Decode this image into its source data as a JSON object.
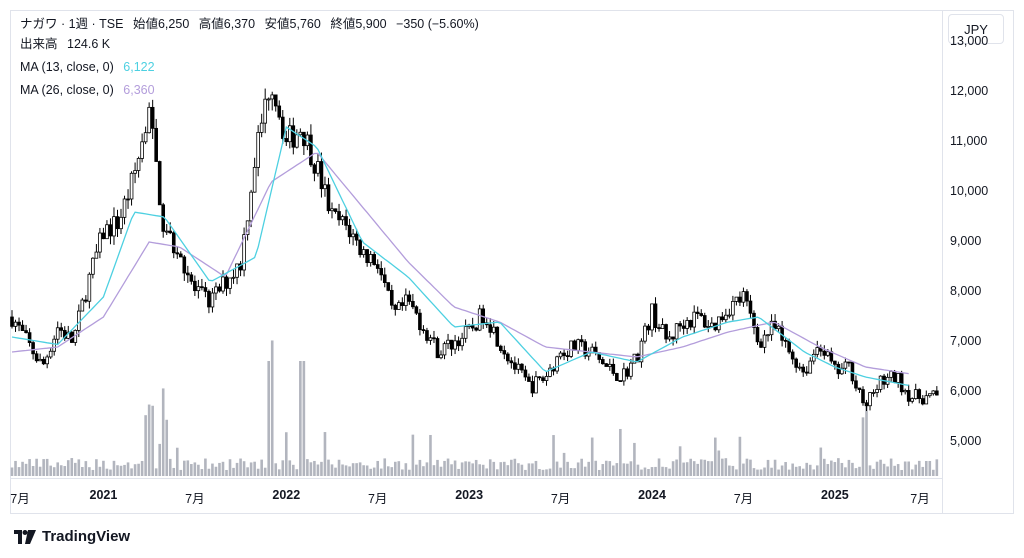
{
  "legend": {
    "symbol": "ナガワ · 1週 · TSE",
    "open_label": "始値",
    "open": "6,250",
    "high_label": "高値",
    "high": "6,370",
    "low_label": "安値",
    "low": "5,760",
    "close_label": "終値",
    "close": "5,900",
    "change": "−350 (−5.60%)",
    "volume_label": "出来高",
    "volume": "124.6 K",
    "ma13_label": "MA (13, close, 0)",
    "ma13_value": "6,122",
    "ma26_label": "MA (26, close, 0)",
    "ma26_value": "6,360"
  },
  "currency": "JPY",
  "branding": "TradingView",
  "colors": {
    "candle": "#000000",
    "ma13": "#4dd0e1",
    "ma26": "#b39ddb",
    "volume": "#b2b5be",
    "grid": "#e0e3eb"
  },
  "chart_data": {
    "type": "candlestick",
    "interval": "weekly",
    "price_ticks": [
      "13,000",
      "12,000",
      "11,000",
      "10,000",
      "9,000",
      "8,000",
      "7,000",
      "6,000",
      "5,000"
    ],
    "time_ticks": [
      {
        "label": "7月",
        "year": false
      },
      {
        "label": "2021",
        "year": true
      },
      {
        "label": "7月",
        "year": false
      },
      {
        "label": "2022",
        "year": true
      },
      {
        "label": "7月",
        "year": false
      },
      {
        "label": "2023",
        "year": true
      },
      {
        "label": "7月",
        "year": false
      },
      {
        "label": "2024",
        "year": true
      },
      {
        "label": "7月",
        "year": false
      },
      {
        "label": "2025",
        "year": true
      },
      {
        "label": "7月",
        "year": false
      }
    ],
    "ylim": [
      4400,
      13400
    ],
    "close_path": [
      [
        "2020-07",
        7500
      ],
      [
        "2020-08",
        7000
      ],
      [
        "2020-09",
        6500
      ],
      [
        "2020-10",
        7300
      ],
      [
        "2020-11",
        7000
      ],
      [
        "2020-12",
        8200
      ],
      [
        "2021-01",
        9200
      ],
      [
        "2021-02",
        9400
      ],
      [
        "2021-03",
        10300
      ],
      [
        "2021-04",
        11600
      ],
      [
        "2021-05",
        9200
      ],
      [
        "2021-06",
        8800
      ],
      [
        "2021-07",
        8000
      ],
      [
        "2021-08",
        7800
      ],
      [
        "2021-09",
        8200
      ],
      [
        "2021-10",
        8600
      ],
      [
        "2021-11",
        10800
      ],
      [
        "2021-12",
        12300
      ],
      [
        "2022-01",
        11000
      ],
      [
        "2022-02",
        11300
      ],
      [
        "2022-03",
        10500
      ],
      [
        "2022-04",
        9500
      ],
      [
        "2022-05",
        9300
      ],
      [
        "2022-06",
        8800
      ],
      [
        "2022-07",
        8600
      ],
      [
        "2022-08",
        7500
      ],
      [
        "2022-09",
        7800
      ],
      [
        "2022-10",
        7300
      ],
      [
        "2022-11",
        6800
      ],
      [
        "2022-12",
        7000
      ],
      [
        "2023-01",
        7200
      ],
      [
        "2023-02",
        7600
      ],
      [
        "2023-03",
        7000
      ],
      [
        "2023-04",
        6500
      ],
      [
        "2023-05",
        6100
      ],
      [
        "2023-06",
        6300
      ],
      [
        "2023-07",
        6800
      ],
      [
        "2023-08",
        6900
      ],
      [
        "2023-09",
        6800
      ],
      [
        "2023-10",
        6500
      ],
      [
        "2023-11",
        6300
      ],
      [
        "2023-12",
        6700
      ],
      [
        "2024-01",
        7600
      ],
      [
        "2024-02",
        7000
      ],
      [
        "2024-03",
        7400
      ],
      [
        "2024-04",
        7500
      ],
      [
        "2024-05",
        7300
      ],
      [
        "2024-06",
        7700
      ],
      [
        "2024-07",
        7900
      ],
      [
        "2024-08",
        7000
      ],
      [
        "2024-09",
        7300
      ],
      [
        "2024-10",
        6800
      ],
      [
        "2024-11",
        6400
      ],
      [
        "2024-12",
        7000
      ],
      [
        "2025-01",
        6400
      ],
      [
        "2025-02",
        6500
      ],
      [
        "2025-03",
        5700
      ],
      [
        "2025-04",
        6200
      ],
      [
        "2025-05",
        6300
      ],
      [
        "2025-06",
        5900
      ]
    ],
    "ma13_path": [
      [
        "2020-07",
        7100
      ],
      [
        "2020-10",
        6950
      ],
      [
        "2021-01",
        7900
      ],
      [
        "2021-03",
        9600
      ],
      [
        "2021-05",
        9500
      ],
      [
        "2021-08",
        8200
      ],
      [
        "2021-11",
        8700
      ],
      [
        "2022-01",
        11300
      ],
      [
        "2022-03",
        10900
      ],
      [
        "2022-06",
        9000
      ],
      [
        "2022-09",
        8300
      ],
      [
        "2022-12",
        7300
      ],
      [
        "2023-03",
        7400
      ],
      [
        "2023-06",
        6400
      ],
      [
        "2023-09",
        6800
      ],
      [
        "2023-12",
        6600
      ],
      [
        "2024-03",
        7100
      ],
      [
        "2024-06",
        7400
      ],
      [
        "2024-08",
        7500
      ],
      [
        "2024-11",
        6800
      ],
      [
        "2025-01",
        6500
      ],
      [
        "2025-03",
        6300
      ],
      [
        "2025-06",
        6122
      ]
    ],
    "ma26_path": [
      [
        "2020-07",
        6800
      ],
      [
        "2020-10",
        6900
      ],
      [
        "2021-01",
        7500
      ],
      [
        "2021-04",
        9000
      ],
      [
        "2021-06",
        8900
      ],
      [
        "2021-09",
        8300
      ],
      [
        "2021-12",
        10200
      ],
      [
        "2022-03",
        10800
      ],
      [
        "2022-06",
        9700
      ],
      [
        "2022-09",
        8600
      ],
      [
        "2022-12",
        7700
      ],
      [
        "2023-03",
        7400
      ],
      [
        "2023-06",
        6900
      ],
      [
        "2023-09",
        6800
      ],
      [
        "2023-12",
        6700
      ],
      [
        "2024-03",
        6900
      ],
      [
        "2024-06",
        7200
      ],
      [
        "2024-09",
        7400
      ],
      [
        "2024-12",
        6900
      ],
      [
        "2025-03",
        6500
      ],
      [
        "2025-06",
        6360
      ]
    ],
    "volume_spikes": [
      [
        "2021-04",
        "high"
      ],
      [
        "2021-05",
        "high"
      ],
      [
        "2021-12",
        "very_high"
      ],
      [
        "2022-02",
        "very_high"
      ],
      [
        "2025-03",
        "high"
      ]
    ]
  }
}
